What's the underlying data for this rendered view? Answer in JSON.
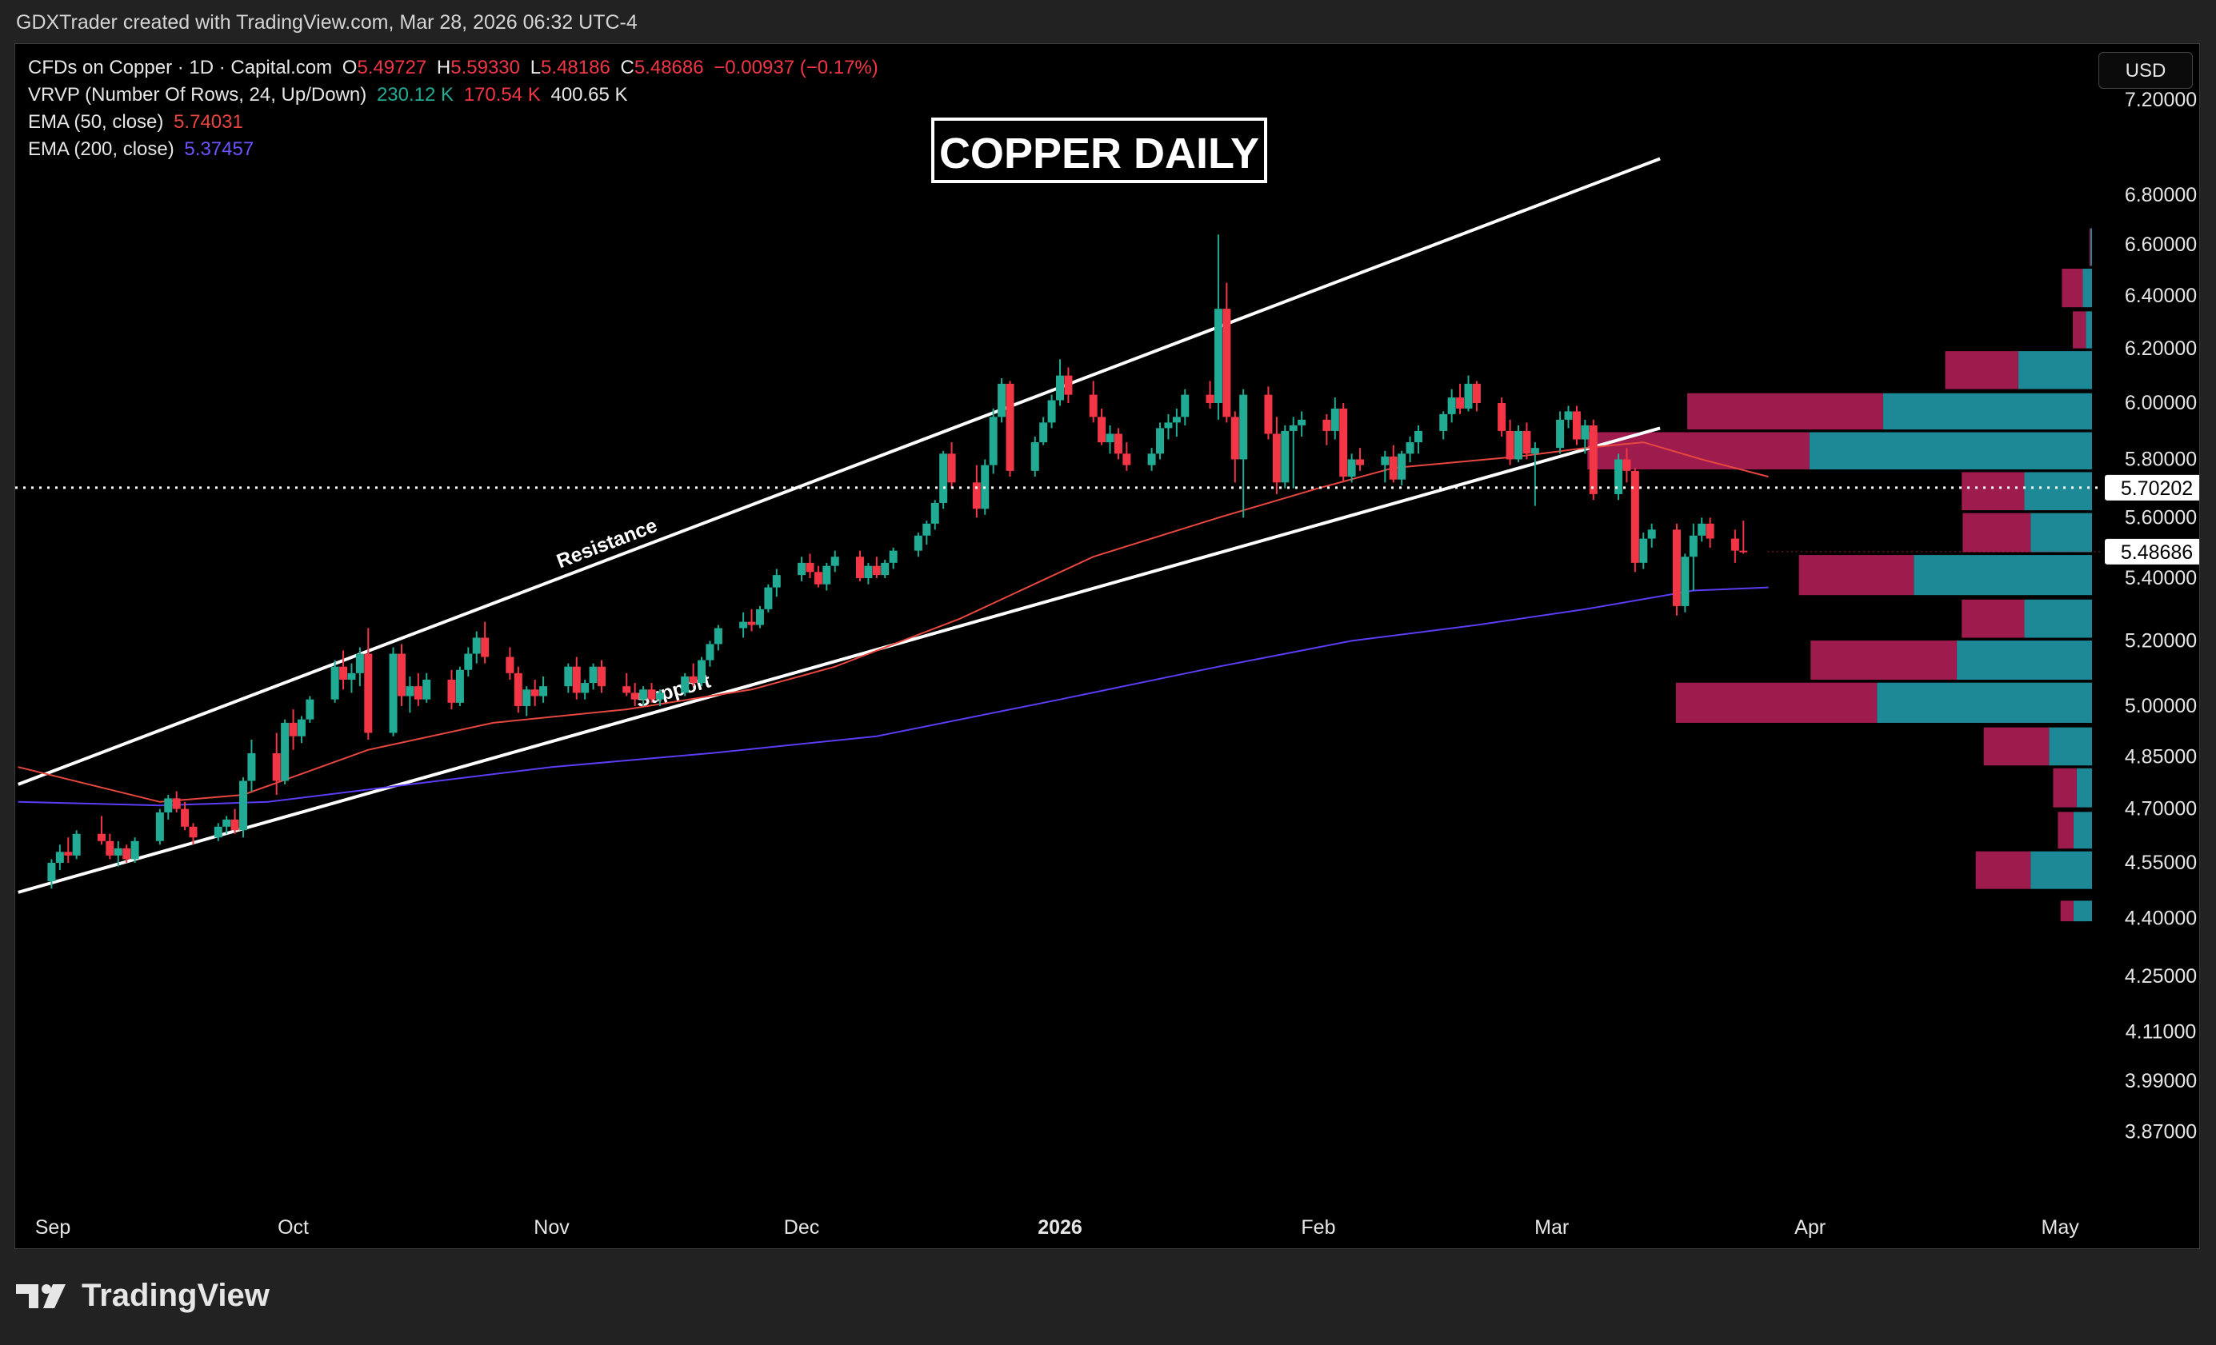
{
  "caption": "GDXTrader created with TradingView.com, Mar 28, 2026 06:32 UTC-4",
  "brand": "TradingView",
  "title_box": "COPPER DAILY",
  "currency_button": "USD",
  "legend": {
    "symbol": "CFDs on Copper · 1D · Capital.com",
    "o_label": "O",
    "o_value": "5.49727",
    "h_label": "H",
    "h_value": "5.59330",
    "l_label": "L",
    "l_value": "5.48186",
    "c_label": "C",
    "c_value": "5.48686",
    "change": "−0.00937 (−0.17%)",
    "vrvp_label": "VRVP (Number Of Rows, 24, Up/Down)",
    "vrvp_up": "230.12 K",
    "vrvp_down": "170.54 K",
    "vrvp_total": "400.65 K",
    "ema50_label": "EMA (50, close)",
    "ema50_value": "5.74031",
    "ema200_label": "EMA (200, close)",
    "ema200_value": "5.37457"
  },
  "colors": {
    "up": "#22ab94",
    "down": "#f23645",
    "ema50": "#e8473f",
    "ema200": "#5b3df5",
    "vp_up": "#22a0b0",
    "vp_down": "#b8205a",
    "background": "#000000"
  },
  "chart_data": {
    "type": "candlestick",
    "x_labels": [
      "Sep",
      "Oct",
      "Nov",
      "Dec",
      "2026",
      "Feb",
      "Mar",
      "Apr",
      "May"
    ],
    "y_ticks": [
      "7.20000",
      "6.80000",
      "6.60000",
      "6.40000",
      "6.20000",
      "6.00000",
      "5.80000",
      "5.60000",
      "5.40000",
      "5.20000",
      "5.00000",
      "4.85000",
      "4.70000",
      "4.55000",
      "4.40000",
      "4.25000",
      "4.11000",
      "3.99000",
      "3.87000"
    ],
    "price_tags": [
      {
        "value": "5.70202",
        "price": 5.70202,
        "style": "dotted-line"
      },
      {
        "value": "5.48686",
        "price": 5.48686,
        "style": "last-price"
      }
    ],
    "scale": "log",
    "ylim": [
      3.82,
      7.35
    ],
    "trendlines": [
      {
        "label": "Resistance",
        "from": {
          "date": "2025-08-29",
          "price": 4.77
        },
        "to": {
          "date": "2026-03-14",
          "price": 6.95
        }
      },
      {
        "label": "Support",
        "from": {
          "date": "2025-08-29",
          "price": 4.47
        },
        "to": {
          "date": "2026-03-14",
          "price": 5.91
        }
      }
    ],
    "candles": [
      [
        4.5,
        4.56,
        4.48,
        4.55
      ],
      [
        4.55,
        4.6,
        4.53,
        4.58
      ],
      [
        4.58,
        4.62,
        4.55,
        4.57
      ],
      [
        4.57,
        4.64,
        4.56,
        4.63
      ],
      [
        4.63,
        4.68,
        4.6,
        4.61
      ],
      [
        4.61,
        4.63,
        4.56,
        4.57
      ],
      [
        4.57,
        4.61,
        4.54,
        4.59
      ],
      [
        4.59,
        4.6,
        4.55,
        4.56
      ],
      [
        4.56,
        4.62,
        4.55,
        4.61
      ],
      [
        4.61,
        4.7,
        4.6,
        4.69
      ],
      [
        4.69,
        4.74,
        4.67,
        4.73
      ],
      [
        4.73,
        4.75,
        4.69,
        4.7
      ],
      [
        4.7,
        4.72,
        4.64,
        4.65
      ],
      [
        4.65,
        4.66,
        4.6,
        4.62
      ],
      [
        4.62,
        4.66,
        4.61,
        4.65
      ],
      [
        4.65,
        4.68,
        4.63,
        4.67
      ],
      [
        4.67,
        4.7,
        4.63,
        4.64
      ],
      [
        4.64,
        4.79,
        4.62,
        4.78
      ],
      [
        4.78,
        4.9,
        4.75,
        4.86
      ],
      [
        4.86,
        4.92,
        4.74,
        4.78
      ],
      [
        4.78,
        4.96,
        4.77,
        4.95
      ],
      [
        4.95,
        4.99,
        4.87,
        4.91
      ],
      [
        4.91,
        4.97,
        4.89,
        4.96
      ],
      [
        4.96,
        5.03,
        4.95,
        5.02
      ],
      [
        5.02,
        5.14,
        5.01,
        5.12
      ],
      [
        5.12,
        5.17,
        5.05,
        5.08
      ],
      [
        5.08,
        5.13,
        5.04,
        5.1
      ],
      [
        5.1,
        5.18,
        5.06,
        5.16
      ],
      [
        5.16,
        5.24,
        4.9,
        4.92
      ],
      [
        4.92,
        5.18,
        4.91,
        5.16
      ],
      [
        5.16,
        5.19,
        5.0,
        5.03
      ],
      [
        5.03,
        5.09,
        4.98,
        5.06
      ],
      [
        5.06,
        5.1,
        5.0,
        5.02
      ],
      [
        5.02,
        5.1,
        5.01,
        5.08
      ],
      [
        5.08,
        5.11,
        4.99,
        5.01
      ],
      [
        5.01,
        5.12,
        5.0,
        5.11
      ],
      [
        5.11,
        5.18,
        5.09,
        5.16
      ],
      [
        5.16,
        5.23,
        5.13,
        5.21
      ],
      [
        5.21,
        5.26,
        5.13,
        5.15
      ],
      [
        5.15,
        5.18,
        5.08,
        5.1
      ],
      [
        5.1,
        5.12,
        4.98,
        5.0
      ],
      [
        5.0,
        5.06,
        4.97,
        5.05
      ],
      [
        5.05,
        5.08,
        5.0,
        5.03
      ],
      [
        5.03,
        5.09,
        5.01,
        5.06
      ],
      [
        5.06,
        5.13,
        5.04,
        5.12
      ],
      [
        5.12,
        5.15,
        5.02,
        5.04
      ],
      [
        5.04,
        5.08,
        5.02,
        5.07
      ],
      [
        5.07,
        5.13,
        5.05,
        5.12
      ],
      [
        5.12,
        5.14,
        5.04,
        5.06
      ],
      [
        5.06,
        5.1,
        5.03,
        5.04
      ],
      [
        5.04,
        5.07,
        5.0,
        5.02
      ],
      [
        5.02,
        5.06,
        5.0,
        5.05
      ],
      [
        5.05,
        5.07,
        5.01,
        5.02
      ],
      [
        5.02,
        5.05,
        5.0,
        5.04
      ],
      [
        5.04,
        5.1,
        5.03,
        5.09
      ],
      [
        5.09,
        5.13,
        5.06,
        5.07
      ],
      [
        5.07,
        5.15,
        5.06,
        5.14
      ],
      [
        5.14,
        5.2,
        5.12,
        5.19
      ],
      [
        5.19,
        5.25,
        5.17,
        5.24
      ],
      [
        5.24,
        5.29,
        5.21,
        5.26
      ],
      [
        5.26,
        5.3,
        5.23,
        5.25
      ],
      [
        5.25,
        5.31,
        5.24,
        5.3
      ],
      [
        5.3,
        5.38,
        5.29,
        5.37
      ],
      [
        5.37,
        5.43,
        5.34,
        5.41
      ],
      [
        5.41,
        5.47,
        5.39,
        5.45
      ],
      [
        5.45,
        5.48,
        5.4,
        5.42
      ],
      [
        5.42,
        5.44,
        5.37,
        5.38
      ],
      [
        5.38,
        5.45,
        5.36,
        5.44
      ],
      [
        5.44,
        5.49,
        5.42,
        5.47
      ],
      [
        5.47,
        5.49,
        5.39,
        5.4
      ],
      [
        5.4,
        5.45,
        5.38,
        5.44
      ],
      [
        5.44,
        5.47,
        5.4,
        5.41
      ],
      [
        5.41,
        5.46,
        5.4,
        5.45
      ],
      [
        5.45,
        5.5,
        5.43,
        5.49
      ],
      [
        5.49,
        5.55,
        5.47,
        5.54
      ],
      [
        5.54,
        5.59,
        5.51,
        5.58
      ],
      [
        5.58,
        5.66,
        5.56,
        5.65
      ],
      [
        5.65,
        5.83,
        5.63,
        5.82
      ],
      [
        5.82,
        5.86,
        5.7,
        5.72
      ],
      [
        5.72,
        5.78,
        5.6,
        5.63
      ],
      [
        5.63,
        5.8,
        5.61,
        5.78
      ],
      [
        5.78,
        5.98,
        5.75,
        5.95
      ],
      [
        5.95,
        6.09,
        5.93,
        6.07
      ],
      [
        6.07,
        6.08,
        5.74,
        5.76
      ],
      [
        5.76,
        5.88,
        5.74,
        5.86
      ],
      [
        5.86,
        5.95,
        5.85,
        5.93
      ],
      [
        5.93,
        6.03,
        5.91,
        6.01
      ],
      [
        6.01,
        6.16,
        5.99,
        6.1
      ],
      [
        6.1,
        6.13,
        6.0,
        6.03
      ],
      [
        6.03,
        6.08,
        5.93,
        5.95
      ],
      [
        5.95,
        5.98,
        5.85,
        5.86
      ],
      [
        5.86,
        5.92,
        5.82,
        5.89
      ],
      [
        5.89,
        5.91,
        5.8,
        5.82
      ],
      [
        5.82,
        5.86,
        5.76,
        5.78
      ],
      [
        5.78,
        5.84,
        5.76,
        5.82
      ],
      [
        5.82,
        5.93,
        5.8,
        5.91
      ],
      [
        5.91,
        5.96,
        5.87,
        5.93
      ],
      [
        5.93,
        5.98,
        5.88,
        5.95
      ],
      [
        5.95,
        6.05,
        5.92,
        6.03
      ],
      [
        6.03,
        6.08,
        5.98,
        6.0
      ],
      [
        6.0,
        6.64,
        5.94,
        6.35
      ],
      [
        6.35,
        6.45,
        5.93,
        5.95
      ],
      [
        5.95,
        5.97,
        5.72,
        5.8
      ],
      [
        5.8,
        6.05,
        5.6,
        6.03
      ],
      [
        6.03,
        6.06,
        5.87,
        5.89
      ],
      [
        5.89,
        5.95,
        5.68,
        5.72
      ],
      [
        5.72,
        5.92,
        5.7,
        5.9
      ],
      [
        5.9,
        5.95,
        5.7,
        5.92
      ],
      [
        5.92,
        5.97,
        5.88,
        5.94
      ],
      [
        5.94,
        5.96,
        5.85,
        5.9
      ],
      [
        5.9,
        6.02,
        5.87,
        5.98
      ],
      [
        5.98,
        6.0,
        5.72,
        5.74
      ],
      [
        5.74,
        5.82,
        5.72,
        5.8
      ],
      [
        5.8,
        5.84,
        5.76,
        5.78
      ],
      [
        5.78,
        5.83,
        5.72,
        5.81
      ],
      [
        5.81,
        5.85,
        5.72,
        5.73
      ],
      [
        5.73,
        5.83,
        5.71,
        5.82
      ],
      [
        5.82,
        5.88,
        5.79,
        5.86
      ],
      [
        5.86,
        5.92,
        5.82,
        5.9
      ],
      [
        5.9,
        5.97,
        5.87,
        5.96
      ],
      [
        5.96,
        6.05,
        5.93,
        6.02
      ],
      [
        6.02,
        6.07,
        5.96,
        5.98
      ],
      [
        5.98,
        6.1,
        5.97,
        6.07
      ],
      [
        6.07,
        6.08,
        5.97,
        6.0
      ],
      [
        6.0,
        6.02,
        5.88,
        5.9
      ],
      [
        5.9,
        5.94,
        5.78,
        5.8
      ],
      [
        5.8,
        5.92,
        5.79,
        5.9
      ],
      [
        5.9,
        5.93,
        5.8,
        5.82
      ],
      [
        5.82,
        5.86,
        5.64,
        5.84
      ],
      [
        5.84,
        5.97,
        5.82,
        5.94
      ],
      [
        5.94,
        5.99,
        5.91,
        5.97
      ],
      [
        5.97,
        5.99,
        5.85,
        5.87
      ],
      [
        5.87,
        5.94,
        5.82,
        5.92
      ],
      [
        5.92,
        5.94,
        5.66,
        5.68
      ],
      [
        5.68,
        5.82,
        5.66,
        5.8
      ],
      [
        5.8,
        5.84,
        5.72,
        5.76
      ],
      [
        5.76,
        5.77,
        5.42,
        5.45
      ],
      [
        5.45,
        5.55,
        5.43,
        5.53
      ],
      [
        5.53,
        5.58,
        5.5,
        5.56
      ],
      [
        5.56,
        5.58,
        5.28,
        5.31
      ],
      [
        5.31,
        5.48,
        5.29,
        5.47
      ],
      [
        5.47,
        5.58,
        5.36,
        5.54
      ],
      [
        5.54,
        5.6,
        5.52,
        5.58
      ],
      [
        5.58,
        5.6,
        5.5,
        5.53
      ],
      [
        5.53,
        5.56,
        5.45,
        5.49
      ],
      [
        5.49,
        5.59,
        5.48,
        5.48686
      ]
    ],
    "ema50": [
      [
        "2025-08-29",
        4.82
      ],
      [
        "2025-09-15",
        4.72
      ],
      [
        "2025-09-25",
        4.74
      ],
      [
        "2025-10-10",
        4.87
      ],
      [
        "2025-10-25",
        4.95
      ],
      [
        "2025-11-10",
        4.99
      ],
      [
        "2025-11-25",
        5.05
      ],
      [
        "2025-12-05",
        5.12
      ],
      [
        "2025-12-20",
        5.27
      ],
      [
        "2026-01-05",
        5.47
      ],
      [
        "2026-01-20",
        5.6
      ],
      [
        "2026-02-01",
        5.7
      ],
      [
        "2026-02-10",
        5.77
      ],
      [
        "2026-02-25",
        5.81
      ],
      [
        "2026-03-05",
        5.84
      ],
      [
        "2026-03-12",
        5.86
      ],
      [
        "2026-03-19",
        5.8
      ],
      [
        "2026-03-27",
        5.74
      ]
    ],
    "ema200": [
      [
        "2025-08-29",
        4.72
      ],
      [
        "2025-09-15",
        4.71
      ],
      [
        "2025-09-28",
        4.72
      ],
      [
        "2025-10-15",
        4.77
      ],
      [
        "2025-11-01",
        4.82
      ],
      [
        "2025-11-20",
        4.86
      ],
      [
        "2025-12-10",
        4.91
      ],
      [
        "2026-01-01",
        5.02
      ],
      [
        "2026-01-20",
        5.12
      ],
      [
        "2026-02-05",
        5.2
      ],
      [
        "2026-02-20",
        5.25
      ],
      [
        "2026-03-05",
        5.3
      ],
      [
        "2026-03-18",
        5.36
      ],
      [
        "2026-03-27",
        5.37
      ]
    ],
    "volume_profile": {
      "rows": [
        {
          "price": 6.59,
          "up": 0.005,
          "down": 0.004
        },
        {
          "price": 6.43,
          "up": 0.03,
          "down": 0.08
        },
        {
          "price": 6.27,
          "up": 0.02,
          "down": 0.05
        },
        {
          "price": 6.12,
          "up": 0.24,
          "down": 0.28
        },
        {
          "price": 5.97,
          "up": 0.68,
          "down": 0.75
        },
        {
          "price": 5.83,
          "up": 0.92,
          "down": 0.85
        },
        {
          "price": 5.69,
          "up": 0.22,
          "down": 0.24
        },
        {
          "price": 5.55,
          "up": 0.2,
          "down": 0.26
        },
        {
          "price": 5.41,
          "up": 0.58,
          "down": 0.44
        },
        {
          "price": 5.27,
          "up": 0.22,
          "down": 0.24
        },
        {
          "price": 5.14,
          "up": 0.44,
          "down": 0.56
        },
        {
          "price": 5.01,
          "up": 0.7,
          "down": 0.77
        },
        {
          "price": 4.88,
          "up": 0.14,
          "down": 0.25
        },
        {
          "price": 4.76,
          "up": 0.05,
          "down": 0.09
        },
        {
          "price": 4.64,
          "up": 0.06,
          "down": 0.06
        },
        {
          "price": 4.53,
          "up": 0.2,
          "down": 0.21
        },
        {
          "price": 4.42,
          "up": 0.06,
          "down": 0.05
        }
      ]
    }
  }
}
